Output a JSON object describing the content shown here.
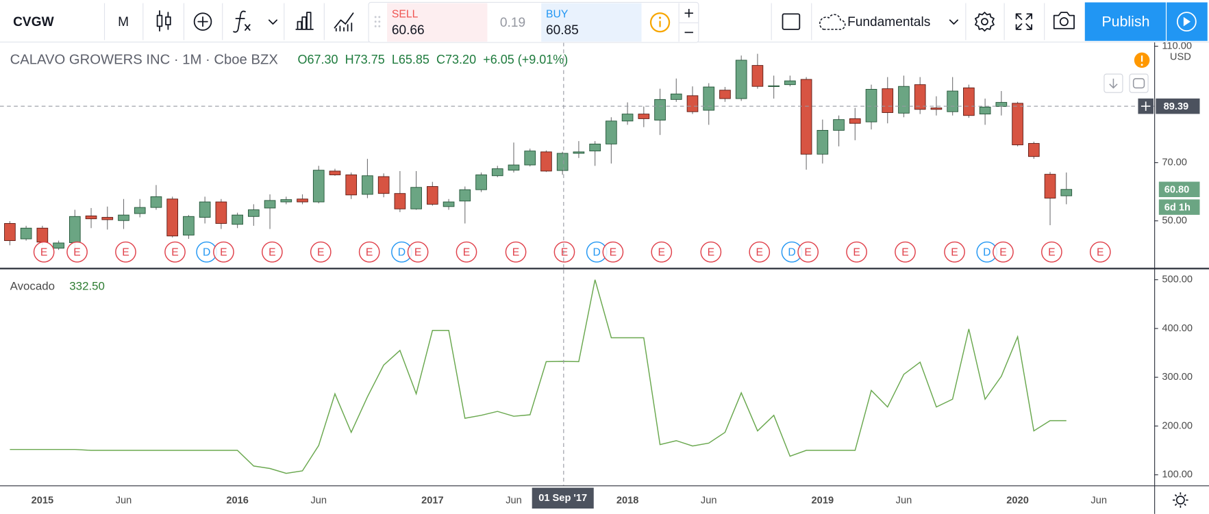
{
  "toolbar": {
    "symbol": "CVGW",
    "interval": "M",
    "sell_label": "SELL",
    "sell_price": "60.66",
    "spread": "0.19",
    "buy_label": "BUY",
    "buy_price": "60.85",
    "fundamentals": "Fundamentals",
    "publish": "Publish"
  },
  "chart_data": [
    {
      "type": "candlestick",
      "title": "CALAVO GROWERS INC · 1M · Cboe BZX",
      "ohlc_legend": [
        "O67.30",
        "H73.75",
        "L65.85",
        "C73.20",
        "+6.05 (+9.01%)"
      ],
      "currency": "USD",
      "up_color": "#6ba583",
      "down_color": "#d75442",
      "open": [
        49.1,
        43.8,
        47.5,
        40.6,
        42.5,
        51.7,
        51.2,
        50.1,
        52.5,
        54.6,
        57.5,
        45.1,
        51.2,
        56.5,
        48.8,
        51.5,
        54.4,
        56.5,
        57.5,
        56.5,
        67.1,
        65.8,
        59.1,
        65.2,
        59.4,
        54.1,
        61.8,
        54.9,
        56.8,
        60.7,
        65.5,
        67.4,
        69.2,
        73.7,
        67.3,
        73.2,
        74.0,
        76.4,
        84.3,
        86.7,
        84.6,
        91.7,
        93.0,
        88.0,
        94.9,
        92.0,
        103.4,
        96.2,
        96.8,
        98.6,
        72.9,
        81.1,
        85.1,
        84.0,
        95.4,
        87.0,
        96.8,
        88.8,
        87.5,
        95.7,
        86.7,
        89.3,
        90.4,
        76.6,
        66.0,
        58.6,
        null,
        null
      ],
      "high": [
        49.9,
        48.3,
        48.3,
        43.2,
        53.8,
        54.4,
        54.9,
        57.5,
        57.5,
        62.3,
        58.3,
        52.0,
        58.3,
        57.5,
        52.8,
        55.7,
        59.1,
        58.3,
        59.1,
        68.9,
        67.9,
        66.6,
        71.3,
        66.3,
        67.1,
        67.1,
        63.4,
        57.5,
        61.8,
        66.6,
        68.9,
        76.9,
        74.8,
        74.2,
        73.75,
        77.4,
        77.4,
        85.6,
        90.7,
        89.3,
        95.4,
        98.9,
        96.2,
        97.3,
        96.0,
        106.8,
        107.4,
        99.9,
        99.9,
        99.4,
        84.8,
        86.2,
        88.8,
        96.8,
        99.4,
        99.9,
        99.4,
        92.8,
        99.4,
        96.8,
        92.0,
        94.6,
        90.9,
        77.2,
        66.8,
        66.6,
        null,
        null
      ],
      "low": [
        41.6,
        43.2,
        41.6,
        40.0,
        40.6,
        47.5,
        47.0,
        47.2,
        51.2,
        53.8,
        44.3,
        43.8,
        49.1,
        47.2,
        47.5,
        48.3,
        47.2,
        55.7,
        55.7,
        56.0,
        65.5,
        57.5,
        57.8,
        58.1,
        53.0,
        53.8,
        55.2,
        53.8,
        49.1,
        59.9,
        65.0,
        66.6,
        68.7,
        66.8,
        65.85,
        71.6,
        68.9,
        69.7,
        83.0,
        82.2,
        79.5,
        90.9,
        86.7,
        83.0,
        90.9,
        91.2,
        95.4,
        92.0,
        96.2,
        67.6,
        69.7,
        75.6,
        77.7,
        81.4,
        83.5,
        85.6,
        86.7,
        86.2,
        86.2,
        85.4,
        83.0,
        86.2,
        75.6,
        71.3,
        48.5,
        55.7,
        null,
        null
      ],
      "close": [
        43.2,
        47.5,
        42.7,
        42.4,
        51.5,
        50.7,
        50.4,
        52.0,
        54.6,
        58.3,
        44.8,
        51.5,
        56.5,
        49.1,
        52.0,
        53.8,
        57.0,
        57.3,
        56.5,
        67.4,
        65.8,
        58.9,
        65.5,
        59.4,
        54.1,
        61.5,
        55.7,
        56.5,
        60.7,
        65.8,
        67.9,
        69.2,
        74.0,
        67.1,
        73.2,
        73.7,
        76.4,
        84.3,
        86.7,
        85.1,
        91.7,
        93.6,
        87.5,
        96.0,
        92.0,
        105.2,
        96.2,
        96.4,
        98.1,
        72.9,
        81.1,
        84.8,
        83.5,
        95.2,
        87.2,
        96.2,
        88.3,
        88.3,
        94.6,
        86.2,
        89.1,
        90.7,
        76.1,
        72.1,
        57.8,
        60.8,
        null,
        null
      ],
      "ylim": [
        34,
        111.3
      ],
      "yticks": [
        {
          "value": 110,
          "label": "110.00"
        },
        {
          "value": 70,
          "label": "70.00"
        },
        {
          "value": 50,
          "label": "50.00"
        }
      ],
      "crosshair_price": 89.39,
      "last_price": {
        "value": 60.8,
        "label": "60.80"
      },
      "countdown": "6d 1h",
      "earnings": [
        "E",
        "E",
        "E",
        "E",
        "E",
        "E",
        "E",
        "E",
        "E",
        "E",
        "E",
        "E",
        "E",
        "E",
        "E",
        "E",
        "E",
        "E",
        "E",
        "E",
        "E",
        "E",
        "E"
      ],
      "dividends": [
        "D",
        "D",
        "D",
        "D",
        "D"
      ]
    },
    {
      "type": "line",
      "title": "Avocado",
      "value_label": "332.50",
      "color": "#6aa84f",
      "categories": [
        null,
        null,
        "2015",
        null,
        null,
        null,
        null,
        "Jun",
        null,
        null,
        null,
        null,
        null,
        null,
        "2016",
        null,
        null,
        null,
        null,
        "Jun",
        null,
        null,
        null,
        null,
        null,
        null,
        "2017",
        null,
        null,
        null,
        null,
        "Jun",
        null,
        null,
        null,
        null,
        null,
        null,
        "2018",
        null,
        null,
        null,
        null,
        "Jun",
        null,
        null,
        null,
        null,
        null,
        null,
        "2019",
        null,
        null,
        null,
        null,
        "Jun",
        null,
        null,
        null,
        null,
        null,
        null,
        "2020",
        null,
        null,
        null,
        null,
        "Jun"
      ],
      "values": [
        152,
        152,
        152,
        152,
        152,
        150,
        150,
        150,
        150,
        150,
        150,
        150,
        150,
        150,
        150,
        118,
        113,
        103,
        108,
        160,
        266,
        187,
        260,
        325,
        355,
        266,
        396,
        396,
        216,
        222,
        230,
        220,
        223,
        332,
        332.5,
        332,
        500,
        381,
        381,
        381,
        162,
        170,
        159,
        165,
        187,
        268,
        190,
        222,
        138,
        150,
        150,
        150,
        150,
        273,
        239,
        306,
        331,
        239,
        255,
        399,
        255,
        302,
        383,
        190,
        211,
        211,
        null,
        null
      ],
      "ylim": [
        78.2,
        520.5
      ],
      "yticks": [
        {
          "value": 100,
          "label": "100.00"
        },
        {
          "value": 200,
          "label": "200.00"
        },
        {
          "value": 300,
          "label": "300.00"
        },
        {
          "value": 400,
          "label": "400.00"
        },
        {
          "value": 500,
          "label": "500.00"
        }
      ],
      "crosshair_label": "01 Sep '17"
    }
  ]
}
